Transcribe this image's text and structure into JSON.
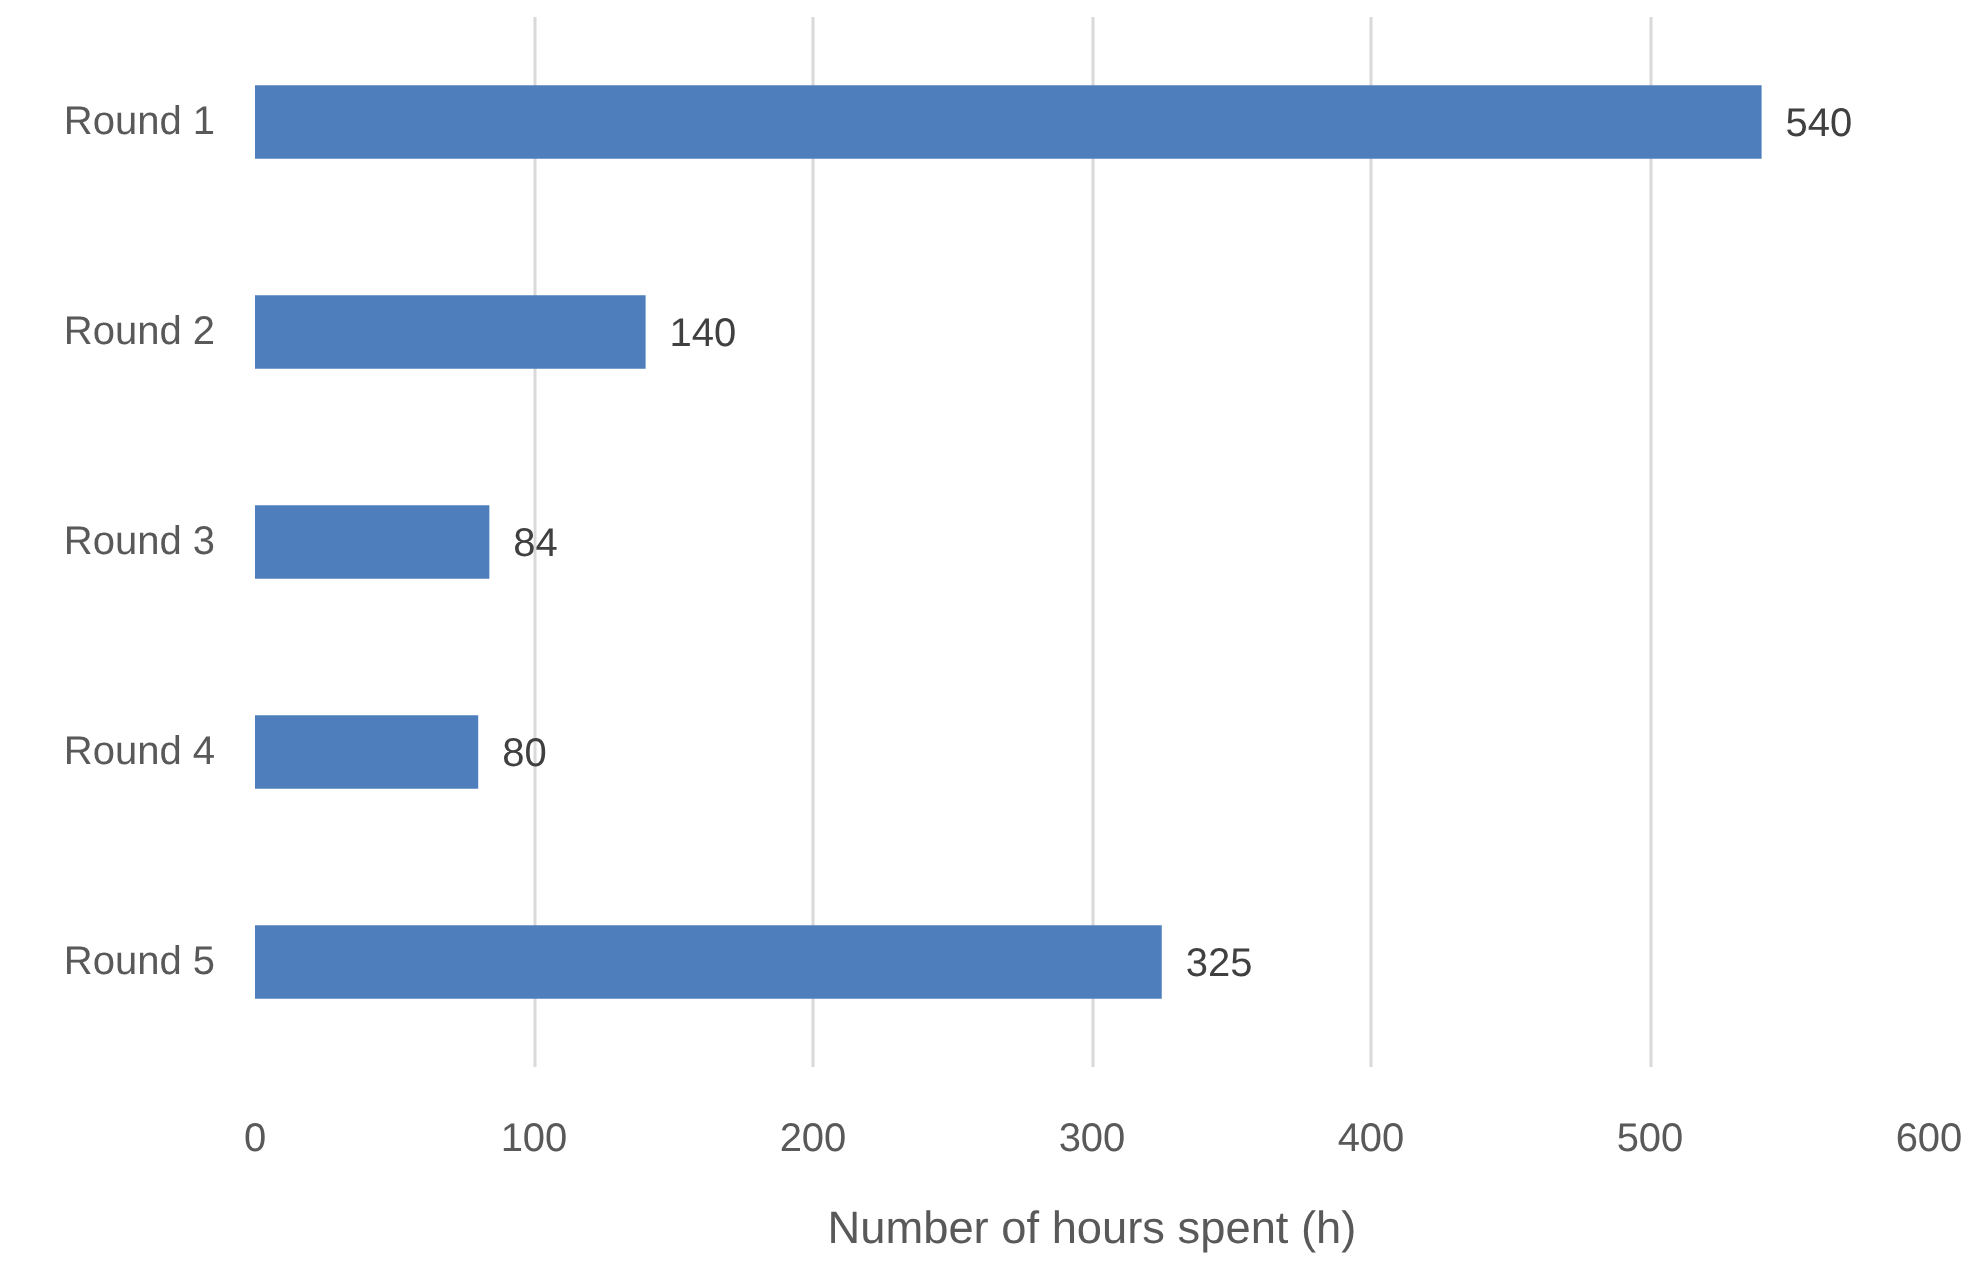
{
  "chart_data": {
    "type": "bar",
    "orientation": "horizontal",
    "xlabel": "Number of hours spent (h)",
    "categories": [
      "Round 1",
      "Round 2",
      "Round 3",
      "Round 4",
      "Round 5"
    ],
    "values": [
      540,
      140,
      84,
      80,
      325
    ],
    "color": "#4e7fbc",
    "data_labels": true,
    "xlim": [
      0,
      600
    ],
    "xticks": [
      0,
      100,
      200,
      300,
      400,
      500,
      600
    ],
    "grid": "x"
  }
}
